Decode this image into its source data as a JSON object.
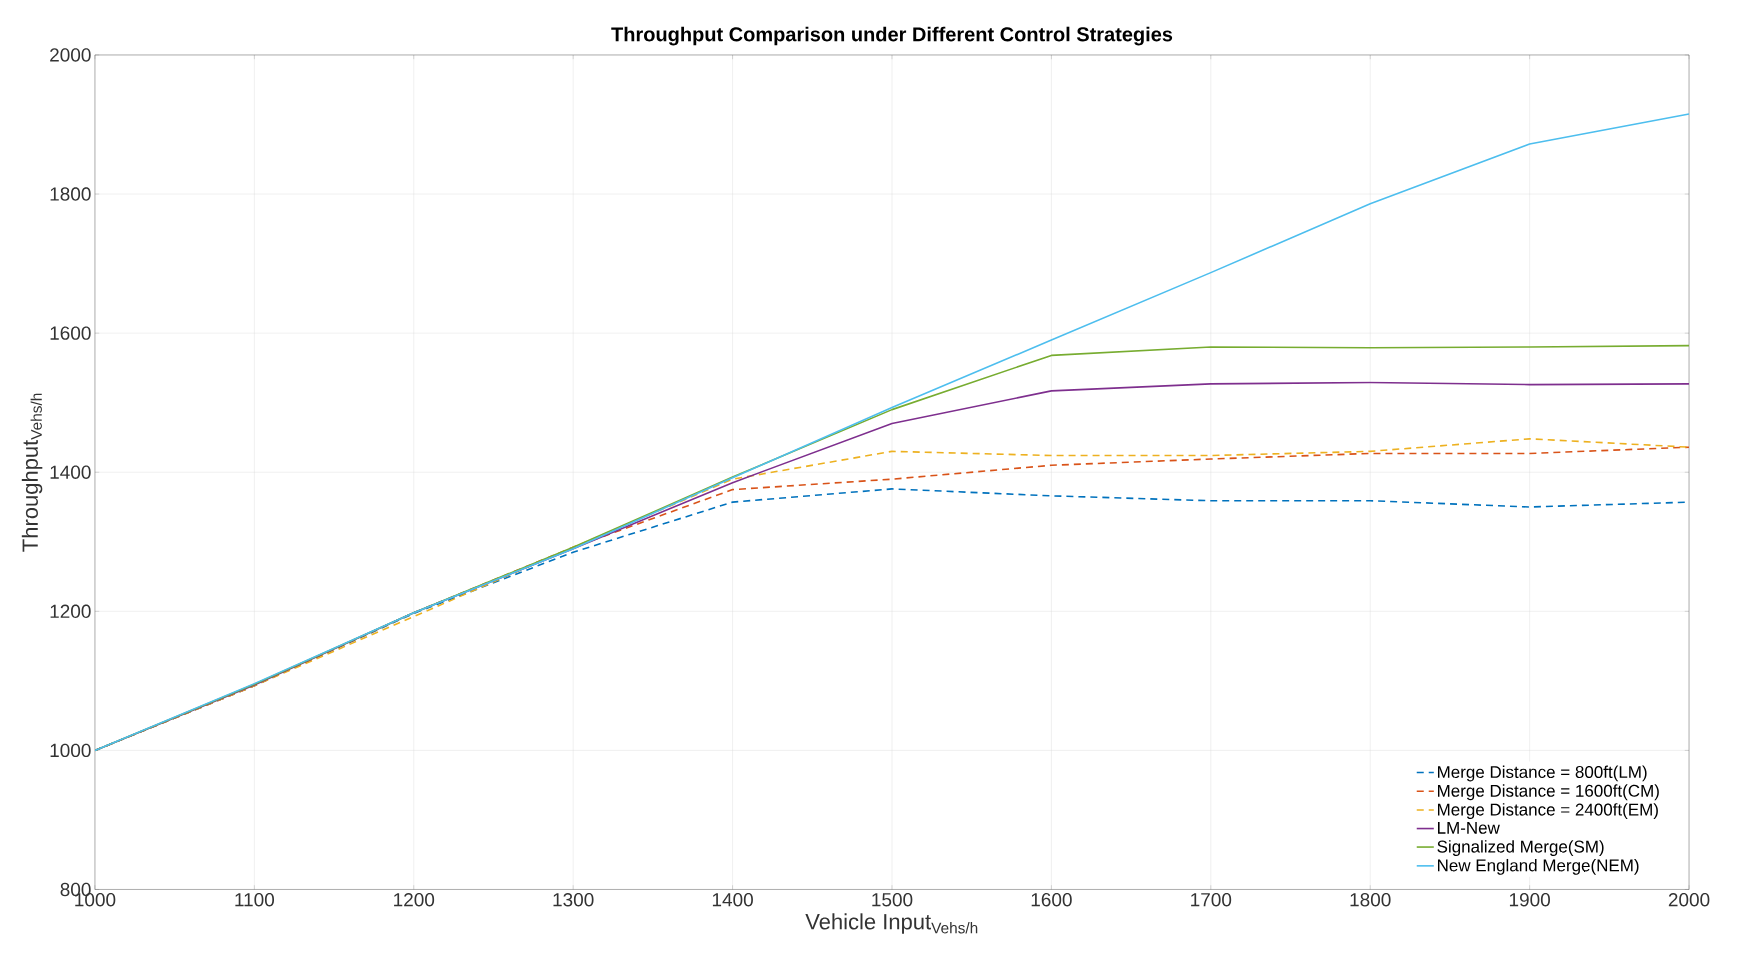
{
  "chart_data": {
    "type": "line",
    "title": "Throughput Comparison under Different Control Strategies",
    "xlabel": "Vehicle Input$_{Vehs/h}$",
    "ylabel": "Throughput$_{Vehs/h}$",
    "x": [
      1000,
      1100,
      1200,
      1300,
      1400,
      1500,
      1600,
      1700,
      1800,
      1900,
      2000
    ],
    "series": [
      {
        "name": "Merge Distance = 800ft(LM)",
        "color": "#0072bd",
        "line_style": "dashed",
        "values": [
          1000,
          1093,
          1197,
          1285,
          1357,
          1376,
          1366,
          1359,
          1359,
          1350,
          1357
        ]
      },
      {
        "name": "Merge Distance = 1600ft(CM)",
        "color": "#d95319",
        "line_style": "dashed",
        "values": [
          1000,
          1093,
          1198,
          1292,
          1375,
          1390,
          1410,
          1419,
          1427,
          1427,
          1436
        ]
      },
      {
        "name": "Merge Distance = 2400ft(EM)",
        "color": "#edb120",
        "line_style": "dashed",
        "values": [
          1000,
          1093,
          null,
          1292,
          1390,
          1430,
          1424,
          1424,
          1430,
          1448,
          1436
        ]
      },
      {
        "name": "LM-New",
        "color": "#7e2f8e",
        "line_style": "solid",
        "values": [
          1000,
          1094,
          1198,
          1290,
          1385,
          1470,
          1517,
          1527,
          1529,
          1526,
          1527
        ]
      },
      {
        "name": "Signalized Merge(SM)",
        "color": "#77ac30",
        "line_style": "solid",
        "values": [
          1000,
          1095,
          1198,
          1292,
          1393,
          1490,
          1568,
          1580,
          1579,
          1580,
          1582
        ]
      },
      {
        "name": "New England Merge(NEM)",
        "color": "#4dbeee",
        "line_style": "solid",
        "values": [
          1000,
          1096,
          1198,
          1290,
          1392,
          1493,
          1590,
          1687,
          1786,
          1872,
          1915
        ]
      }
    ],
    "xlim": [
      1000,
      2000
    ],
    "ylim": [
      800,
      2000
    ],
    "xticks": [
      1000,
      1100,
      1200,
      1300,
      1400,
      1500,
      1600,
      1700,
      1800,
      1900,
      2000
    ],
    "yticks": [
      800,
      1000,
      1200,
      1400,
      1600,
      1800,
      2000
    ],
    "grid": true,
    "legend": "bottom right",
    "marker": "none"
  }
}
